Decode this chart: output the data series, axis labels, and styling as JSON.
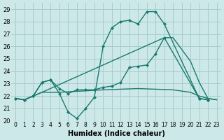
{
  "xlabel": "Humidex (Indice chaleur)",
  "background_color": "#cde8e8",
  "grid_color": "#a8cccc",
  "line_color": "#1a7a6e",
  "xlim": [
    -0.5,
    23.5
  ],
  "ylim": [
    20.0,
    29.5
  ],
  "xticks": [
    0,
    1,
    2,
    3,
    4,
    5,
    6,
    7,
    8,
    9,
    10,
    11,
    12,
    13,
    14,
    15,
    16,
    17,
    18,
    19,
    20,
    21,
    22,
    23
  ],
  "yticks": [
    20,
    21,
    22,
    23,
    24,
    25,
    26,
    27,
    28,
    29
  ],
  "line1_x": [
    0,
    1,
    2,
    3,
    4,
    5,
    6,
    7,
    8,
    9,
    10,
    11,
    12,
    13,
    14,
    15,
    16,
    17,
    21,
    22
  ],
  "line1_y": [
    21.8,
    21.7,
    22.0,
    23.1,
    23.3,
    22.2,
    20.7,
    20.2,
    21.0,
    21.9,
    26.0,
    27.5,
    28.0,
    28.1,
    27.8,
    28.8,
    28.8,
    27.8,
    21.8,
    21.7
  ],
  "line2_x": [
    0,
    1,
    2,
    3,
    4,
    5,
    6,
    7,
    8,
    9,
    10,
    11,
    12,
    13,
    14,
    15,
    16,
    17,
    21,
    22
  ],
  "line2_y": [
    21.8,
    21.7,
    22.0,
    23.1,
    23.3,
    22.6,
    22.2,
    22.5,
    22.5,
    22.5,
    22.7,
    22.8,
    23.1,
    24.3,
    24.4,
    24.5,
    25.4,
    26.7,
    21.8,
    21.7
  ],
  "line3_x": [
    0,
    1,
    2,
    3,
    4,
    5,
    10,
    14,
    18,
    19,
    20,
    21,
    22,
    23
  ],
  "line3_y": [
    21.8,
    21.7,
    22.0,
    22.3,
    22.3,
    22.3,
    22.5,
    22.6,
    22.5,
    22.4,
    22.3,
    22.0,
    21.8,
    21.7
  ],
  "line4_x": [
    0,
    1,
    2,
    3,
    17,
    18,
    20,
    21,
    22,
    23
  ],
  "line4_y": [
    21.8,
    21.7,
    22.0,
    22.3,
    26.7,
    26.7,
    24.8,
    23.1,
    21.8,
    21.7
  ]
}
